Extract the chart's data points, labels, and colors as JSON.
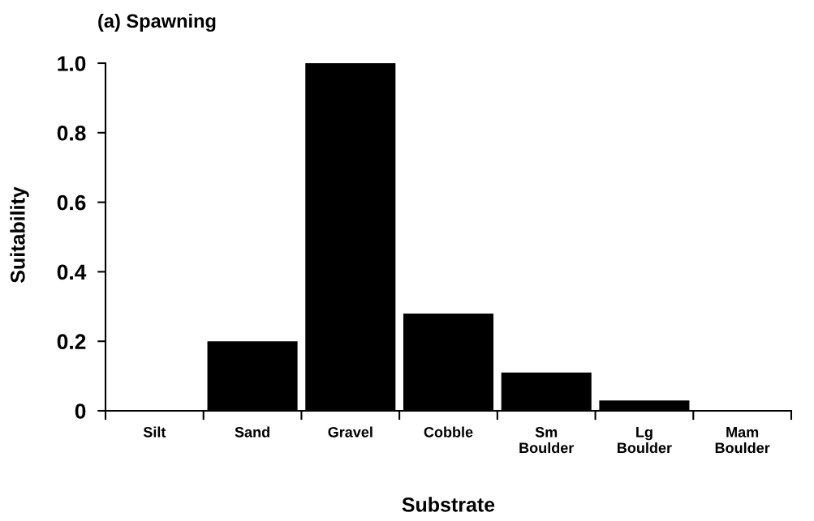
{
  "chart_data": {
    "type": "bar",
    "title": "(a) Spawning",
    "xlabel": "Substrate",
    "ylabel": "Suitability",
    "categories": [
      "Silt",
      "Sand",
      "Gravel",
      "Cobble",
      "Sm\nBoulder",
      "Lg\nBoulder",
      "Mam\nBoulder"
    ],
    "values": [
      0,
      0.2,
      1.0,
      0.28,
      0.11,
      0.03,
      0
    ],
    "color": "#000000",
    "ylim": [
      0,
      1
    ],
    "yticks": [
      0,
      0.2,
      0.4,
      0.6,
      0.8,
      {
        "value": 1,
        "label": "1.0"
      }
    ],
    "grid": false,
    "legend": false
  }
}
